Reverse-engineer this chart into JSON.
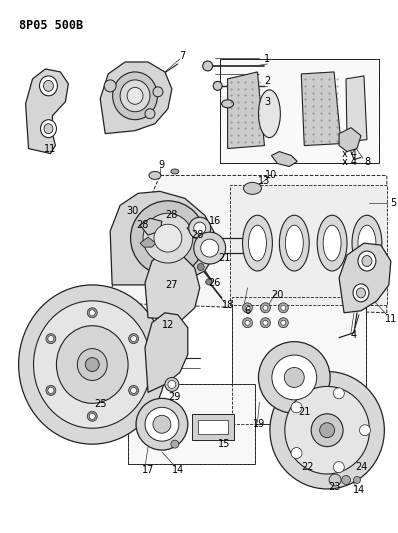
{
  "title": "8P05 500B",
  "bg_color": "#ffffff",
  "text_color": "#000000",
  "fig_width": 3.98,
  "fig_height": 5.33,
  "dpi": 100,
  "lw_main": 0.9,
  "lw_thin": 0.5,
  "ec": "#222222",
  "fc_part": "#e8e8e8",
  "fc_white": "#ffffff",
  "fc_dark": "#aaaaaa"
}
